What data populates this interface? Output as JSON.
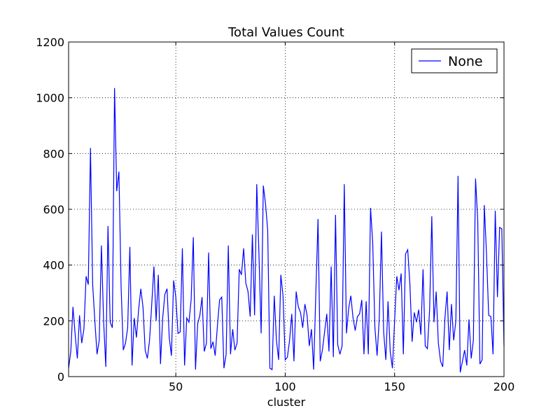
{
  "chart_data": {
    "type": "line",
    "title": "Total Values Count",
    "xlabel": "cluster",
    "x": [
      1,
      2,
      3,
      4,
      5,
      6,
      7,
      8,
      9,
      10,
      11,
      12,
      13,
      14,
      15,
      16,
      17,
      18,
      19,
      20,
      21,
      22,
      23,
      24,
      25,
      26,
      27,
      28,
      29,
      30,
      31,
      32,
      33,
      34,
      35,
      36,
      37,
      38,
      39,
      40,
      41,
      42,
      43,
      44,
      45,
      46,
      47,
      48,
      49,
      50,
      51,
      52,
      53,
      54,
      55,
      56,
      57,
      58,
      59,
      60,
      61,
      62,
      63,
      64,
      65,
      66,
      67,
      68,
      69,
      70,
      71,
      72,
      73,
      74,
      75,
      76,
      77,
      78,
      79,
      80,
      81,
      82,
      83,
      84,
      85,
      86,
      87,
      88,
      89,
      90,
      91,
      92,
      93,
      94,
      95,
      96,
      97,
      98,
      99,
      100,
      101,
      102,
      103,
      104,
      105,
      106,
      107,
      108,
      109,
      110,
      111,
      112,
      113,
      114,
      115,
      116,
      117,
      118,
      119,
      120,
      121,
      122,
      123,
      124,
      125,
      126,
      127,
      128,
      129,
      130,
      131,
      132,
      133,
      134,
      135,
      136,
      137,
      138,
      139,
      140,
      141,
      142,
      143,
      144,
      145,
      146,
      147,
      148,
      149,
      150,
      151,
      152,
      153,
      154,
      155,
      156,
      157,
      158,
      159,
      160,
      161,
      162,
      163,
      164,
      165,
      166,
      167,
      168,
      169,
      170,
      171,
      172,
      173,
      174,
      175,
      176,
      177,
      178,
      179,
      180,
      181,
      182,
      183,
      184,
      185,
      186,
      187,
      188,
      189,
      190,
      191,
      192,
      193,
      194,
      195,
      196,
      197,
      198,
      199,
      200
    ],
    "series": [
      {
        "name": "None",
        "color": "#0000ff",
        "values": [
          30,
          90,
          250,
          150,
          65,
          220,
          120,
          170,
          360,
          330,
          820,
          330,
          200,
          80,
          130,
          470,
          200,
          35,
          540,
          195,
          175,
          1035,
          665,
          735,
          320,
          95,
          120,
          175,
          465,
          40,
          210,
          140,
          240,
          315,
          250,
          95,
          65,
          130,
          260,
          395,
          200,
          365,
          45,
          210,
          295,
          315,
          140,
          75,
          345,
          285,
          155,
          160,
          460,
          40,
          210,
          195,
          275,
          500,
          25,
          190,
          220,
          285,
          90,
          120,
          445,
          100,
          125,
          75,
          180,
          275,
          285,
          30,
          80,
          470,
          80,
          170,
          95,
          120,
          385,
          365,
          460,
          335,
          305,
          215,
          510,
          220,
          690,
          440,
          155,
          685,
          620,
          525,
          30,
          25,
          290,
          130,
          60,
          365,
          290,
          60,
          70,
          130,
          225,
          55,
          305,
          250,
          230,
          175,
          260,
          220,
          110,
          170,
          25,
          300,
          565,
          55,
          95,
          160,
          225,
          90,
          395,
          70,
          580,
          115,
          80,
          110,
          690,
          155,
          245,
          290,
          210,
          165,
          215,
          225,
          275,
          80,
          270,
          80,
          605,
          480,
          175,
          75,
          210,
          520,
          160,
          60,
          270,
          90,
          30,
          200,
          360,
          310,
          370,
          80,
          440,
          455,
          330,
          125,
          230,
          195,
          240,
          150,
          385,
          110,
          100,
          240,
          575,
          195,
          305,
          120,
          55,
          35,
          210,
          305,
          95,
          260,
          130,
          200,
          720,
          15,
          55,
          95,
          40,
          205,
          65,
          130,
          710,
          560,
          45,
          60,
          615,
          440,
          220,
          215,
          80,
          595,
          285,
          535,
          530,
          110
        ]
      }
    ],
    "xlim": [
      1,
      200
    ],
    "xticks": [
      50,
      100,
      150,
      200
    ],
    "ylim": [
      0,
      1200
    ],
    "yticks": [
      0,
      200,
      400,
      600,
      800,
      1000,
      1200
    ],
    "grid": true,
    "legend": "upper right"
  }
}
